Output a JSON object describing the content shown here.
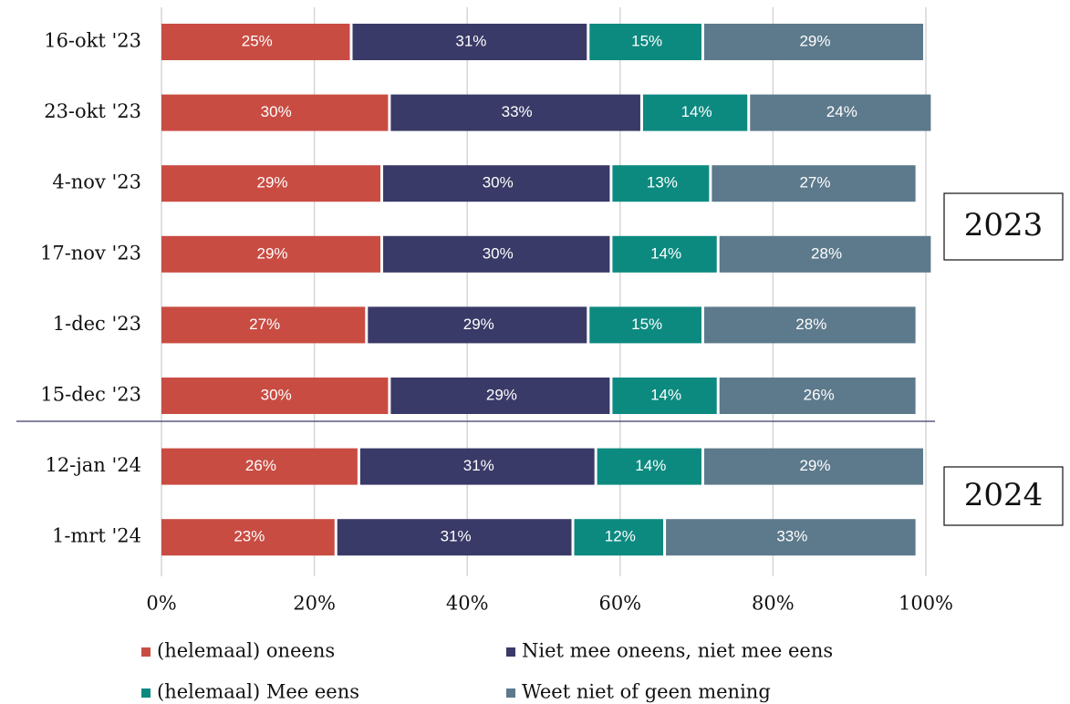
{
  "chart_data": {
    "type": "stacked_barh",
    "categories": [
      "16-okt '23",
      "23-okt '23",
      "4-nov '23",
      "17-nov '23",
      "1-dec '23",
      "15-dec '23",
      "12-jan '24",
      "1-mrt '24"
    ],
    "series": [
      {
        "name": "(helemaal) oneens",
        "color": "#c94c43",
        "values": [
          25,
          30,
          29,
          29,
          27,
          30,
          26,
          23
        ],
        "value_labels": [
          "25%",
          "30%",
          "29%",
          "29%",
          "27%",
          "30%",
          "26%",
          "23%"
        ]
      },
      {
        "name": "Niet mee oneens, niet mee eens",
        "color": "#3a3a68",
        "values": [
          31,
          33,
          30,
          30,
          29,
          29,
          31,
          31
        ],
        "value_labels": [
          "31%",
          "33%",
          "30%",
          "30%",
          "29%",
          "29%",
          "31%",
          "31%"
        ]
      },
      {
        "name": "(helemaal) Mee eens",
        "color": "#0d8a80",
        "values": [
          15,
          14,
          13,
          14,
          15,
          14,
          14,
          12
        ],
        "value_labels": [
          "15%",
          "14%",
          "13%",
          "14%",
          "15%",
          "14%",
          "14%",
          "12%"
        ]
      },
      {
        "name": "Weet niet of geen mening",
        "color": "#5d7a8c",
        "values": [
          29,
          24,
          27,
          28,
          28,
          26,
          29,
          33
        ],
        "value_labels": [
          "29%",
          "24%",
          "27%",
          "28%",
          "28%",
          "26%",
          "29%",
          "33%"
        ]
      }
    ],
    "xlim": [
      0,
      100
    ],
    "xticks": [
      {
        "value": 0,
        "label": "0%"
      },
      {
        "value": 20,
        "label": "20%"
      },
      {
        "value": 40,
        "label": "40%"
      },
      {
        "value": 60,
        "label": "60%"
      },
      {
        "value": 80,
        "label": "80%"
      },
      {
        "value": 100,
        "label": "100%"
      }
    ],
    "grid": true,
    "annotations": [
      "2023",
      "2024"
    ]
  }
}
